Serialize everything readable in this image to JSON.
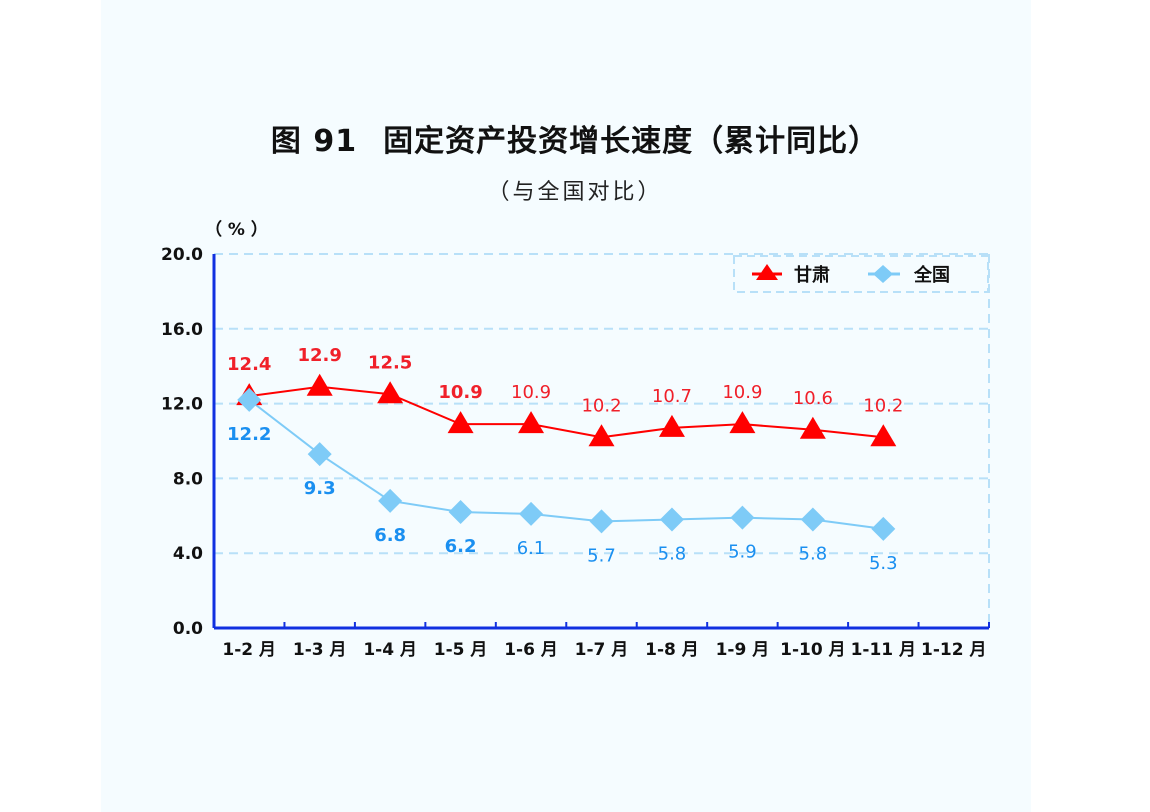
{
  "figure": {
    "number": "图 91",
    "title": "固定资产投资增长速度（累计同比）",
    "subtitle": "（与全国对比）",
    "unit_label": "（ % ）"
  },
  "colors": {
    "gansu": "#ff0000",
    "national": "#7ecbf7",
    "gansu_label": "#f0202a",
    "national_label": "#1a8ff0",
    "axis": "#1030e0",
    "grid": "#b8e0f8",
    "panel_bg": "#f5fcff"
  },
  "legend": [
    {
      "name": "甘肃",
      "marker": "triangle"
    },
    {
      "name": "全国",
      "marker": "diamond"
    }
  ],
  "chart_data": {
    "type": "line",
    "title": "图 91 固定资产投资增长速度（累计同比）",
    "subtitle": "（与全国对比）",
    "xlabel": "",
    "ylabel": "（ % ）",
    "ylim": [
      0,
      20
    ],
    "yticks": [
      "0.0",
      "4.0",
      "8.0",
      "12.0",
      "16.0",
      "20.0"
    ],
    "grid": true,
    "legend_position": "top-right",
    "categories": [
      "1-2 月",
      "1-3 月",
      "1-4 月",
      "1-5 月",
      "1-6 月",
      "1-7 月",
      "1-8 月",
      "1-9 月",
      "1-10 月",
      "1-11 月",
      "1-12 月"
    ],
    "series": [
      {
        "name": "甘肃",
        "marker": "triangle",
        "values": [
          12.4,
          12.9,
          12.5,
          10.9,
          10.9,
          10.2,
          10.7,
          10.9,
          10.6,
          10.2,
          null
        ],
        "labels": [
          "12.4",
          "12.9",
          "12.5",
          "10.9",
          "10.9",
          "10.2",
          "10.7",
          "10.9",
          "10.6",
          "10.2"
        ]
      },
      {
        "name": "全国",
        "marker": "diamond",
        "values": [
          12.2,
          9.3,
          6.8,
          6.2,
          6.1,
          5.7,
          5.8,
          5.9,
          5.8,
          5.3,
          null
        ],
        "labels": [
          "12.2",
          "9.3",
          "6.8",
          "6.2",
          "6.1",
          "5.7",
          "5.8",
          "5.9",
          "5.8",
          "5.3"
        ]
      }
    ]
  }
}
